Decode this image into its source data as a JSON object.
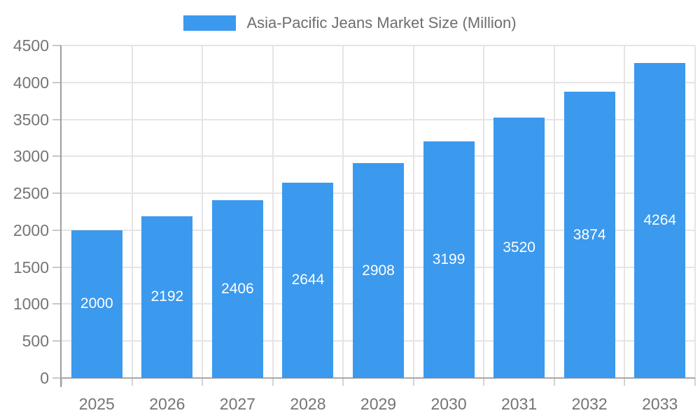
{
  "chart_data": {
    "type": "bar",
    "title": "Asia-Pacific Jeans Market Size (Million)",
    "legend": {
      "position": "top-center",
      "label": "Asia-Pacific Jeans Market Size (Million)"
    },
    "categories": [
      "2025",
      "2026",
      "2027",
      "2028",
      "2029",
      "2030",
      "2031",
      "2032",
      "2033"
    ],
    "values": [
      2000,
      2192,
      2406,
      2644,
      2908,
      3199,
      3520,
      3874,
      4264
    ],
    "series_name": "Asia-Pacific Jeans Market Size (Million)",
    "xlabel": "",
    "ylabel": "",
    "ylim": [
      0,
      4500
    ],
    "y_tick_step": 500,
    "y_ticks": [
      0,
      500,
      1000,
      1500,
      2000,
      2500,
      3000,
      3500,
      4000,
      4500
    ],
    "grid": true,
    "value_labels": "inside-center",
    "colors": {
      "bar": "#3B99EE",
      "value_label": "#FFFFFF",
      "tick_label": "#757575",
      "title_text": "#6E6E6E",
      "gridline": "#E5E5E5",
      "axis_line": "#9E9E9E",
      "background": "#FFFFFF"
    }
  }
}
